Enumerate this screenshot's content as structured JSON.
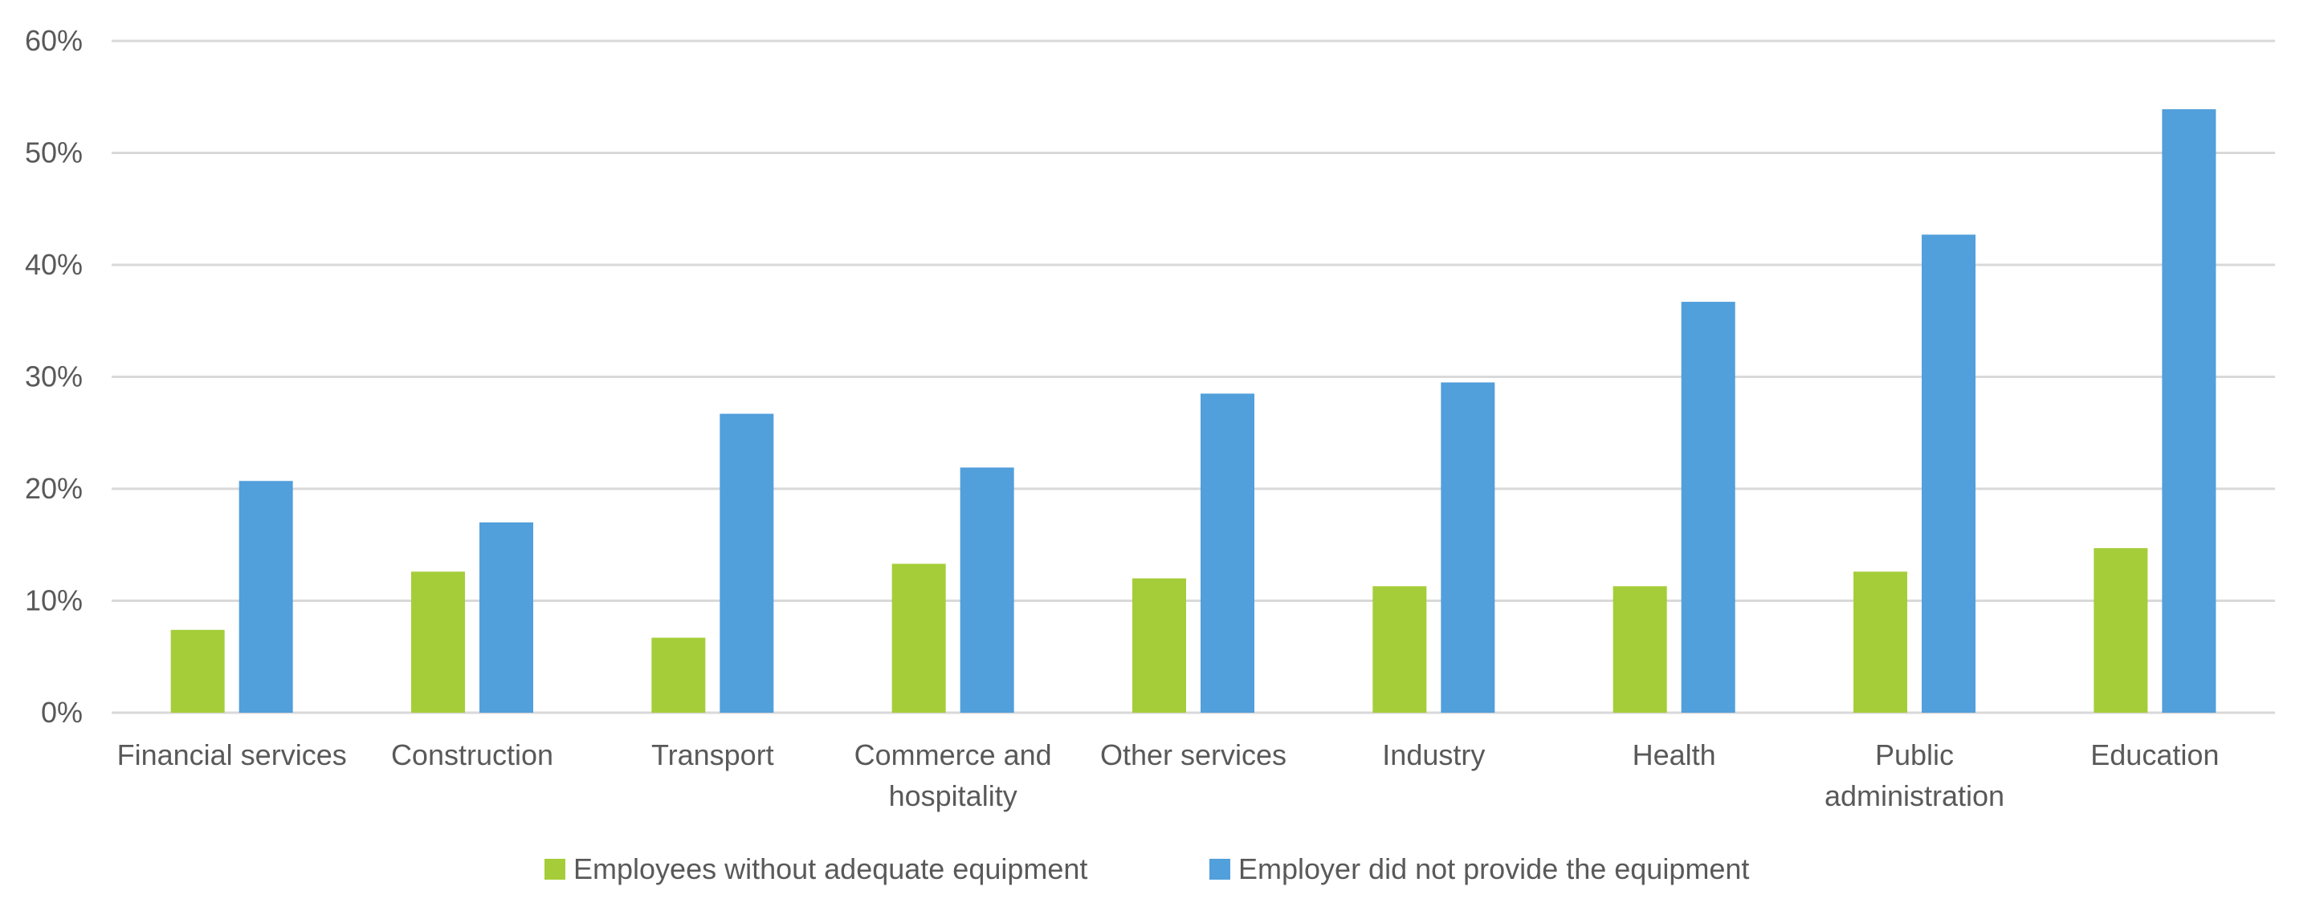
{
  "chart_data": {
    "type": "bar",
    "categories": [
      [
        "Financial services"
      ],
      [
        "Construction"
      ],
      [
        "Transport"
      ],
      [
        "Commerce and",
        "hospitality"
      ],
      [
        "Other services"
      ],
      [
        "Industry"
      ],
      [
        "Health"
      ],
      [
        "Public",
        "administration"
      ],
      [
        "Education"
      ]
    ],
    "series": [
      {
        "name": "Employees without adequate equipment",
        "color": "#a5cd39",
        "values": [
          7.4,
          12.6,
          6.7,
          13.3,
          12.0,
          11.3,
          11.3,
          12.6,
          14.7
        ]
      },
      {
        "name": "Employer did not provide the equipment",
        "color": "#519fdb",
        "values": [
          20.7,
          17.0,
          26.7,
          21.9,
          28.5,
          29.5,
          36.7,
          42.7,
          53.9
        ]
      }
    ],
    "ylim": [
      0,
      60
    ],
    "yticks": [
      "0%",
      "10%",
      "20%",
      "30%",
      "40%",
      "50%",
      "60%"
    ],
    "grid": true,
    "legend_position": "bottom",
    "title": "",
    "xlabel": "",
    "ylabel": ""
  }
}
